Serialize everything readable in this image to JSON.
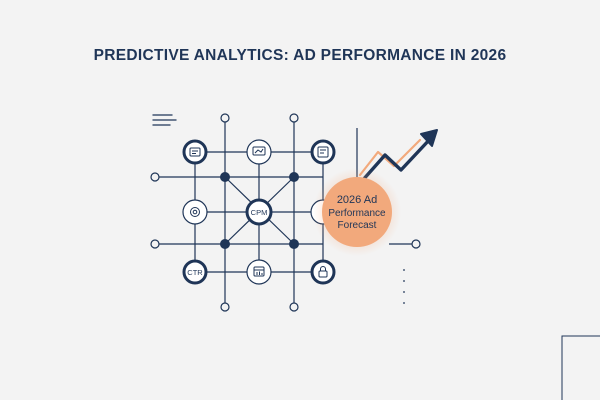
{
  "title": "PREDICTIVE ANALYTICS: AD PERFORMANCE IN 2026",
  "colors": {
    "navy": "#1f3557",
    "orange": "#f2a97c",
    "background": "#f3f3f3",
    "node_fill": "#ffffff"
  },
  "nodes": {
    "cpm_label": "CPM",
    "ctr_label": "CTR",
    "icons": [
      "dashboard-icon",
      "monitor-chart-icon",
      "document-chart-icon",
      "target-settings-icon",
      "calendar-chart-icon",
      "lock-icon"
    ]
  },
  "forecast": {
    "label_line1": "2026 Ad",
    "label_line2": "Performance",
    "label_line3": "Forecast"
  }
}
